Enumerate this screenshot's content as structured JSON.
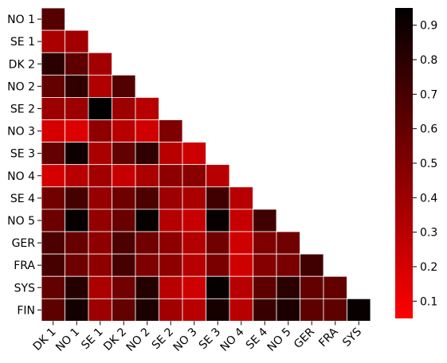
{
  "chart_data": {
    "type": "heatmap",
    "title": "",
    "xlabel": "",
    "ylabel": "",
    "row_labels": [
      "NO 1",
      "SE 1",
      "DK 2",
      "NO 2",
      "SE 2",
      "NO 3",
      "SE 3",
      "NO 4",
      "SE 4",
      "NO 5",
      "GER",
      "FRA",
      "SYS",
      "FIN"
    ],
    "col_labels": [
      "DK 1",
      "NO 1",
      "SE 1",
      "DK 2",
      "NO 2",
      "SE 2",
      "NO 3",
      "SE 3",
      "NO 4",
      "SE 4",
      "NO 5",
      "GER",
      "FRA",
      "SYS"
    ],
    "mask": "lower-triangle",
    "values": [
      [
        0.65
      ],
      [
        0.35,
        0.38
      ],
      [
        0.8,
        0.62,
        0.38
      ],
      [
        0.6,
        0.78,
        0.33,
        0.66
      ],
      [
        0.4,
        0.4,
        0.95,
        0.4,
        0.3
      ],
      [
        0.2,
        0.17,
        0.45,
        0.3,
        0.22,
        0.5
      ],
      [
        0.6,
        0.9,
        0.35,
        0.6,
        0.78,
        0.3,
        0.23
      ],
      [
        0.2,
        0.3,
        0.38,
        0.25,
        0.35,
        0.45,
        0.47,
        0.3
      ],
      [
        0.55,
        0.7,
        0.42,
        0.56,
        0.68,
        0.4,
        0.35,
        0.72,
        0.3
      ],
      [
        0.57,
        0.93,
        0.43,
        0.58,
        0.93,
        0.32,
        0.25,
        0.92,
        0.25,
        0.72
      ],
      [
        0.68,
        0.58,
        0.45,
        0.68,
        0.55,
        0.45,
        0.32,
        0.55,
        0.22,
        0.5,
        0.55
      ],
      [
        0.7,
        0.56,
        0.45,
        0.7,
        0.5,
        0.45,
        0.3,
        0.52,
        0.22,
        0.48,
        0.52,
        0.72
      ],
      [
        0.6,
        0.82,
        0.35,
        0.55,
        0.82,
        0.3,
        0.22,
        0.93,
        0.3,
        0.62,
        0.8,
        0.6,
        0.6
      ],
      [
        0.62,
        0.88,
        0.4,
        0.6,
        0.85,
        0.38,
        0.3,
        0.87,
        0.3,
        0.75,
        0.85,
        0.62,
        0.62,
        0.92
      ]
    ],
    "colorbar": {
      "min": 0.05,
      "max": 0.95,
      "ticks": [
        0.1,
        0.2,
        0.3,
        0.4,
        0.5,
        0.6,
        0.7,
        0.8,
        0.9
      ],
      "tick_labels": [
        "0.1",
        "0.2",
        "0.3",
        "0.4",
        "0.5",
        "0.6",
        "0.7",
        "0.8",
        "0.9"
      ],
      "colors": [
        "#ff0000",
        "#000000"
      ]
    },
    "grid": true,
    "legend": "colorbar-right"
  }
}
